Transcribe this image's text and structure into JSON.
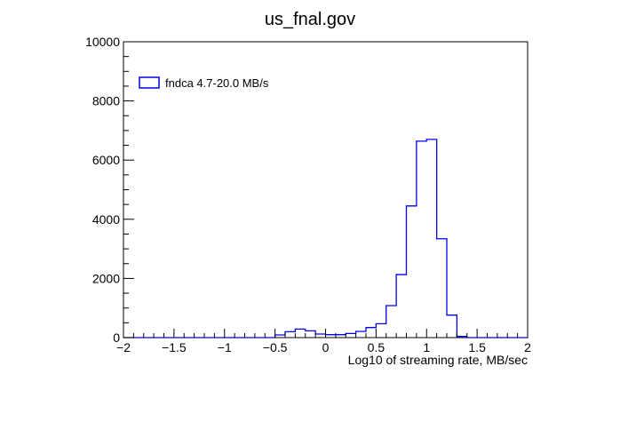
{
  "chart_data": {
    "type": "histogram",
    "title": "us_fnal.gov",
    "xlabel": "Log10  of streaming rate, MB/sec",
    "ylabel": "",
    "xlim": [
      -2,
      2
    ],
    "ylim": [
      0,
      10000
    ],
    "x_ticks": [
      -2,
      -1.5,
      -1,
      -0.5,
      0,
      0.5,
      1,
      1.5,
      2
    ],
    "x_tick_labels": [
      "−2",
      "−1.5",
      "−1",
      "−0.5",
      "0",
      "0.5",
      "1",
      "1.5",
      "2"
    ],
    "y_ticks": [
      0,
      2000,
      4000,
      6000,
      8000,
      10000
    ],
    "y_tick_labels": [
      "0",
      "2000",
      "4000",
      "6000",
      "8000",
      "10000"
    ],
    "grid": false,
    "legend_position": "top-left",
    "bin_width": 0.1,
    "series": [
      {
        "name": "fndca  4.7-20.0 MB/s",
        "color": "#0000ee",
        "bin_edges": [
          -2.0,
          -1.9,
          -1.8,
          -1.7,
          -1.6,
          -1.5,
          -1.4,
          -1.3,
          -1.2,
          -1.1,
          -1.0,
          -0.9,
          -0.8,
          -0.7,
          -0.6,
          -0.5,
          -0.4,
          -0.3,
          -0.2,
          -0.1,
          0.0,
          0.1,
          0.2,
          0.3,
          0.4,
          0.5,
          0.6,
          0.7,
          0.8,
          0.9,
          1.0,
          1.1,
          1.2,
          1.3,
          1.4,
          1.5,
          1.6,
          1.7,
          1.8,
          1.9,
          2.0
        ],
        "values": [
          0,
          0,
          0,
          0,
          0,
          0,
          0,
          0,
          0,
          0,
          0,
          0,
          0,
          0,
          0,
          90,
          200,
          290,
          230,
          120,
          100,
          100,
          140,
          210,
          340,
          470,
          1080,
          2130,
          4450,
          6640,
          6700,
          3340,
          760,
          40,
          0,
          0,
          0,
          0,
          0,
          0
        ]
      }
    ]
  }
}
